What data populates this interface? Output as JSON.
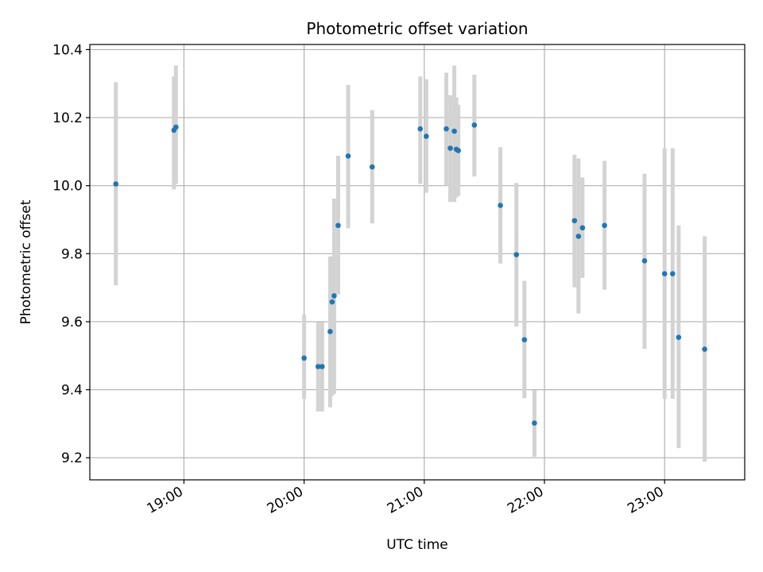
{
  "chart_data": {
    "type": "scatter",
    "title": "Photometric offset variation",
    "xlabel": "UTC time",
    "ylabel": "Photometric offset",
    "x_unit": "UTC time (HH:MM)",
    "xlim": [
      "18:13",
      "23:40"
    ],
    "ylim": [
      9.135,
      10.415
    ],
    "x_ticks": [
      "19:00",
      "20:00",
      "21:00",
      "22:00",
      "23:00"
    ],
    "y_ticks": [
      9.2,
      9.4,
      9.6,
      9.8,
      10.0,
      10.2,
      10.4
    ],
    "y_tick_labels": [
      "9.2",
      "9.4",
      "9.6",
      "9.8",
      "10.0",
      "10.2",
      "10.4"
    ],
    "grid": true,
    "legend": false,
    "marker_color": "#1f77b4",
    "errorbar_color": "#d3d3d3",
    "points": [
      {
        "t": "18:26",
        "y": 10.005,
        "lo": 9.707,
        "hi": 10.304
      },
      {
        "t": "18:55",
        "y": 10.163,
        "lo": 9.989,
        "hi": 10.321
      },
      {
        "t": "18:56",
        "y": 10.172,
        "lo": 10.005,
        "hi": 10.353
      },
      {
        "t": "20:00",
        "y": 9.493,
        "lo": 9.373,
        "hi": 9.621
      },
      {
        "t": "20:07",
        "y": 9.468,
        "lo": 9.336,
        "hi": 9.599
      },
      {
        "t": "20:09",
        "y": 9.468,
        "lo": 9.336,
        "hi": 9.599
      },
      {
        "t": "20:13",
        "y": 9.571,
        "lo": 9.348,
        "hi": 9.792
      },
      {
        "t": "20:14",
        "y": 9.658,
        "lo": 9.382,
        "hi": 9.792
      },
      {
        "t": "20:15",
        "y": 9.676,
        "lo": 9.388,
        "hi": 9.962
      },
      {
        "t": "20:17",
        "y": 9.883,
        "lo": 9.68,
        "hi": 10.088
      },
      {
        "t": "20:22",
        "y": 10.087,
        "lo": 9.875,
        "hi": 10.296
      },
      {
        "t": "20:34",
        "y": 10.055,
        "lo": 9.889,
        "hi": 10.222
      },
      {
        "t": "20:58",
        "y": 10.167,
        "lo": 10.005,
        "hi": 10.321
      },
      {
        "t": "21:01",
        "y": 10.145,
        "lo": 9.979,
        "hi": 10.313
      },
      {
        "t": "21:11",
        "y": 10.167,
        "lo": 10.0,
        "hi": 10.332
      },
      {
        "t": "21:13",
        "y": 10.11,
        "lo": 9.952,
        "hi": 10.266
      },
      {
        "t": "21:15",
        "y": 10.16,
        "lo": 9.952,
        "hi": 10.353
      },
      {
        "t": "21:16",
        "y": 10.107,
        "lo": 9.965,
        "hi": 10.259
      },
      {
        "t": "21:17",
        "y": 10.103,
        "lo": 9.97,
        "hi": 10.238
      },
      {
        "t": "21:25",
        "y": 10.178,
        "lo": 10.027,
        "hi": 10.326
      },
      {
        "t": "21:38",
        "y": 9.942,
        "lo": 9.771,
        "hi": 10.113
      },
      {
        "t": "21:46",
        "y": 9.797,
        "lo": 9.586,
        "hi": 10.008
      },
      {
        "t": "21:50",
        "y": 9.547,
        "lo": 9.375,
        "hi": 9.72
      },
      {
        "t": "21:55",
        "y": 9.302,
        "lo": 9.203,
        "hi": 9.399
      },
      {
        "t": "22:15",
        "y": 9.897,
        "lo": 9.701,
        "hi": 10.091
      },
      {
        "t": "22:17",
        "y": 9.851,
        "lo": 9.624,
        "hi": 10.08
      },
      {
        "t": "22:19",
        "y": 9.876,
        "lo": 9.729,
        "hi": 10.024
      },
      {
        "t": "22:30",
        "y": 9.883,
        "lo": 9.694,
        "hi": 10.073
      },
      {
        "t": "22:50",
        "y": 9.779,
        "lo": 9.52,
        "hi": 10.035
      },
      {
        "t": "23:00",
        "y": 9.741,
        "lo": 9.373,
        "hi": 10.11
      },
      {
        "t": "23:04",
        "y": 9.741,
        "lo": 9.373,
        "hi": 10.11
      },
      {
        "t": "23:07",
        "y": 9.554,
        "lo": 9.228,
        "hi": 9.883
      },
      {
        "t": "23:20",
        "y": 9.519,
        "lo": 9.188,
        "hi": 9.851
      }
    ]
  }
}
